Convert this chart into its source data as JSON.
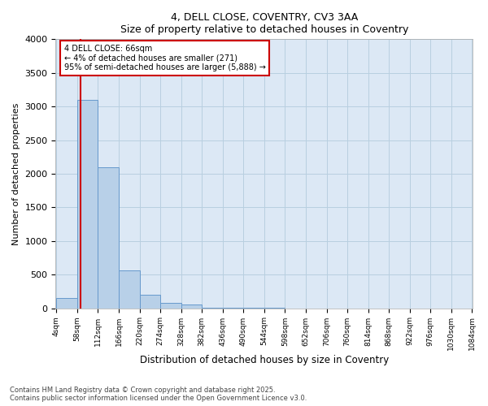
{
  "title": "4, DELL CLOSE, COVENTRY, CV3 3AA",
  "subtitle": "Size of property relative to detached houses in Coventry",
  "xlabel": "Distribution of detached houses by size in Coventry",
  "ylabel": "Number of detached properties",
  "annotation_title": "4 DELL CLOSE: 66sqm",
  "annotation_line1": "← 4% of detached houses are smaller (271)",
  "annotation_line2": "95% of semi-detached houses are larger (5,888) →",
  "property_size": 66,
  "footer_line1": "Contains HM Land Registry data © Crown copyright and database right 2025.",
  "footer_line2": "Contains public sector information licensed under the Open Government Licence v3.0.",
  "bin_edges": [
    4,
    58,
    112,
    166,
    220,
    274,
    328,
    382,
    436,
    490,
    544,
    598,
    652,
    706,
    760,
    814,
    868,
    922,
    976,
    1030,
    1084
  ],
  "bar_heights": [
    150,
    3100,
    2100,
    560,
    200,
    80,
    55,
    10,
    5,
    3,
    2,
    1,
    0,
    0,
    0,
    0,
    0,
    0,
    0,
    0
  ],
  "bar_color": "#b8d0e8",
  "bar_edge_color": "#6699cc",
  "red_line_color": "#cc0000",
  "annotation_box_color": "#cc0000",
  "background_color": "#ffffff",
  "plot_bg_color": "#dce8f5",
  "grid_color": "#b8cfe0",
  "ylim": [
    0,
    4000
  ],
  "ytick_interval": 500,
  "tick_labels": [
    "4sqm",
    "58sqm",
    "112sqm",
    "166sqm",
    "220sqm",
    "274sqm",
    "328sqm",
    "382sqm",
    "436sqm",
    "490sqm",
    "544sqm",
    "598sqm",
    "652sqm",
    "706sqm",
    "760sqm",
    "814sqm",
    "868sqm",
    "922sqm",
    "976sqm",
    "1030sqm",
    "1084sqm"
  ]
}
